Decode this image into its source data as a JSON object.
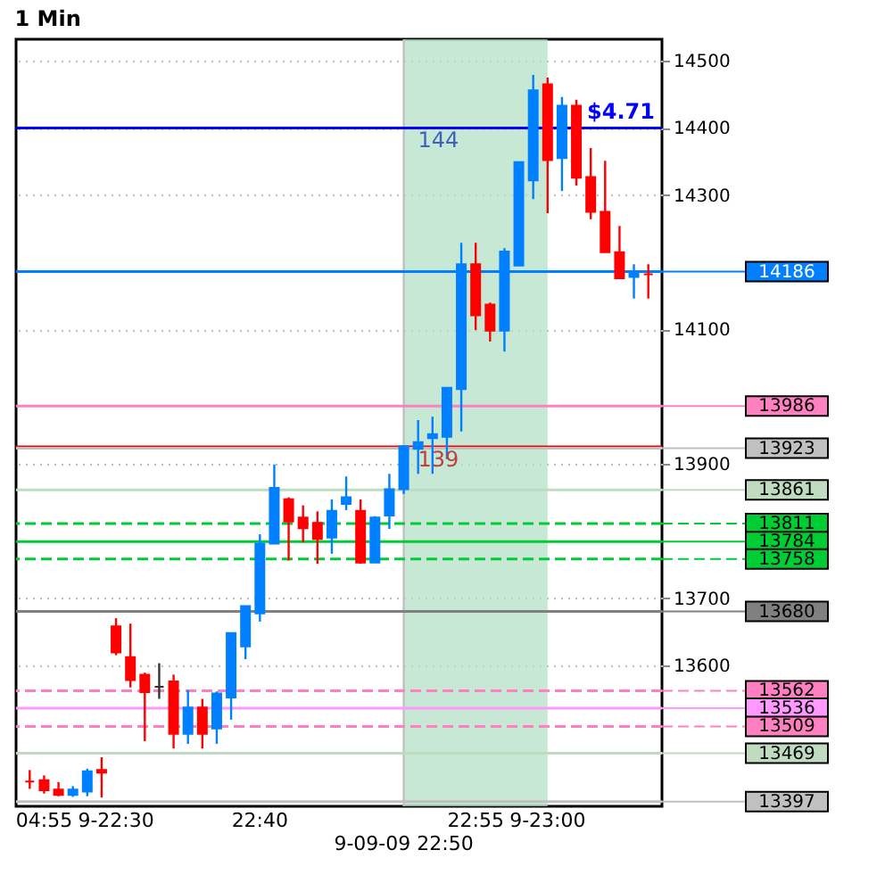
{
  "chart_data": {
    "type": "candlestick",
    "title": "1 Min",
    "categories": [
      null,
      "04:55",
      null,
      null,
      null,
      null,
      "9-22:30",
      null,
      null,
      null,
      null,
      null,
      null,
      null,
      null,
      null,
      "22:40",
      null,
      null,
      null,
      null,
      null,
      null,
      null,
      null,
      null,
      "9-09-09 22:50",
      null,
      null,
      null,
      null,
      "22:55",
      null,
      null,
      null,
      null,
      "9-23:00",
      null,
      null,
      null,
      null,
      null,
      null,
      null
    ],
    "ohlc": [
      [
        13427,
        13444,
        13416,
        13427
      ],
      [
        13429,
        13436,
        13409,
        13414
      ],
      [
        13415,
        13426,
        13405,
        13407
      ],
      [
        13407,
        13420,
        13404,
        13415
      ],
      [
        13412,
        13446,
        13405,
        13442
      ],
      [
        13444,
        13463,
        13403,
        13440
      ],
      [
        13658,
        13670,
        13615,
        13619
      ],
      [
        13612,
        13662,
        13567,
        13578
      ],
      [
        13586,
        13589,
        13487,
        13560
      ],
      [
        13568,
        13603,
        13550,
        13568
      ],
      [
        13576,
        13586,
        13476,
        13498
      ],
      [
        13498,
        13563,
        13483,
        13537
      ],
      [
        13537,
        13550,
        13476,
        13498
      ],
      [
        13506,
        13561,
        13483,
        13558
      ],
      [
        13552,
        13648,
        13519,
        13648
      ],
      [
        13628,
        13688,
        13609,
        13688
      ],
      [
        13677,
        13795,
        13665,
        13781
      ],
      [
        13781,
        13899,
        13781,
        13864
      ],
      [
        13847,
        13850,
        13756,
        13814
      ],
      [
        13820,
        13838,
        13783,
        13804
      ],
      [
        13812,
        13829,
        13751,
        13788
      ],
      [
        13790,
        13847,
        13766,
        13830
      ],
      [
        13840,
        13881,
        13831,
        13850
      ],
      [
        13830,
        13847,
        13751,
        13753
      ],
      [
        13753,
        13822,
        13753,
        13820
      ],
      [
        13823,
        13885,
        13803,
        13862
      ],
      [
        13862,
        13926,
        13855,
        13926
      ],
      [
        13922,
        13965,
        13885,
        13932
      ],
      [
        13938,
        13970,
        13885,
        13944
      ],
      [
        13940,
        14013,
        13907,
        14013
      ],
      [
        14011,
        14229,
        13948,
        14197
      ],
      [
        14197,
        14229,
        14099,
        14121
      ],
      [
        14137,
        14140,
        14082,
        14098
      ],
      [
        14098,
        14221,
        14067,
        14216
      ],
      [
        14195,
        14349,
        14195,
        14349
      ],
      [
        14322,
        14479,
        14294,
        14456
      ],
      [
        14465,
        14475,
        14273,
        14352
      ],
      [
        14355,
        14446,
        14306,
        14433
      ],
      [
        14433,
        14442,
        14314,
        14326
      ],
      [
        14327,
        14370,
        14264,
        14275
      ],
      [
        14275,
        14351,
        14215,
        14215
      ],
      [
        14215,
        14254,
        14176,
        14176
      ],
      [
        14178,
        14197,
        14146,
        14183
      ],
      [
        14182,
        14197,
        14146,
        14182
      ]
    ],
    "colors": [
      "#ff0000",
      "#ff0000",
      "#ff0000",
      "#0080ff",
      "#0080ff",
      "#ff0000",
      "#ff0000",
      "#ff0000",
      "#ff0000",
      "#333333",
      "#ff0000",
      "#0080ff",
      "#ff0000",
      "#0080ff",
      "#0080ff",
      "#0080ff",
      "#0080ff",
      "#0080ff",
      "#ff0000",
      "#ff0000",
      "#ff0000",
      "#0080ff",
      "#0080ff",
      "#ff0000",
      "#0080ff",
      "#0080ff",
      "#0080ff",
      "#0080ff",
      "#0080ff",
      "#0080ff",
      "#0080ff",
      "#ff0000",
      "#ff0000",
      "#0080ff",
      "#0080ff",
      "#0080ff",
      "#ff0000",
      "#0080ff",
      "#ff0000",
      "#ff0000",
      "#ff0000",
      "#ff0000",
      "#0080ff",
      "#ff0000"
    ],
    "ylim": [
      13390,
      14532
    ],
    "yticks": [
      13600,
      13700,
      13900,
      14100,
      14300,
      14400,
      14500
    ],
    "grid": true,
    "bands": [
      {
        "axis": "x",
        "from": "9-09-09 22:50",
        "to": "9-23:00",
        "color": "#b3e0c6"
      }
    ],
    "ref_lines": [
      {
        "axis": "x",
        "value": "9-09-09 22:50",
        "color": "#c0c0c0"
      },
      {
        "axis": "y",
        "value": 14400,
        "color": "#0000ff"
      },
      {
        "axis": "y",
        "value": 13925,
        "color": "#ff0000"
      },
      {
        "axis": "y",
        "value": 14186,
        "label": "14186",
        "color": "#0080ff"
      },
      {
        "axis": "y",
        "value": 13986,
        "label": "13986",
        "color": "#ff80c0"
      },
      {
        "axis": "y",
        "value": 13923,
        "label": "13923",
        "color": "#c0c0c0"
      },
      {
        "axis": "y",
        "value": 13861,
        "label": "13861",
        "color": "#c0dcc0"
      },
      {
        "axis": "y",
        "value": 13811,
        "label": "13811",
        "color": "#00cc33",
        "line_style": "dashed"
      },
      {
        "axis": "y",
        "value": 13784,
        "label": "13784",
        "color": "#00cc33"
      },
      {
        "axis": "y",
        "value": 13758,
        "label": "13758",
        "color": "#00cc33",
        "line_style": "dashed"
      },
      {
        "axis": "y",
        "value": 13680,
        "label": "13680",
        "color": "#808080"
      },
      {
        "axis": "y",
        "value": 13562,
        "label": "13562",
        "color": "#ff80c0",
        "line_style": "dashed"
      },
      {
        "axis": "y",
        "value": 13536,
        "label": "13536",
        "color": "#ff99ff"
      },
      {
        "axis": "y",
        "value": 13509,
        "label": "13509",
        "color": "#ff80c0",
        "line_style": "dashed"
      },
      {
        "axis": "y",
        "value": 13469,
        "label": "13469",
        "color": "#c0dcc0"
      },
      {
        "axis": "y",
        "value": 13397,
        "label": "13397",
        "color": "#c0c0c0"
      }
    ],
    "annotations": [
      {
        "text": "$4.71",
        "y": 14400
      },
      {
        "text": "144",
        "x": "9-09-09 22:50",
        "y": 14400
      },
      {
        "text": "139",
        "x": "9-09-09 22:50",
        "y": 13925
      }
    ]
  }
}
